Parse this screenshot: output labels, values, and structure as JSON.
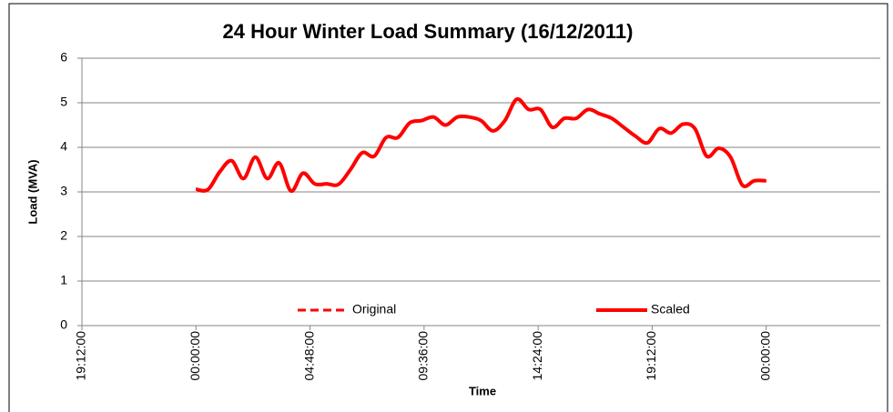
{
  "chart_data": {
    "type": "line",
    "title": "24 Hour Winter Load Summary (16/12/2011)",
    "x_label": "Time",
    "y_label": "Load (MVA)",
    "x": [
      0,
      0.5,
      1,
      1.5,
      2,
      2.5,
      3,
      3.5,
      4,
      4.5,
      5,
      5.5,
      6,
      6.5,
      7,
      7.5,
      8,
      8.5,
      9,
      9.5,
      10,
      10.5,
      11,
      11.5,
      12,
      12.5,
      13,
      13.5,
      14,
      14.5,
      15,
      15.5,
      16,
      16.5,
      17,
      17.5,
      18,
      18.5,
      19,
      19.5,
      20,
      20.5,
      21,
      21.5,
      22,
      22.5,
      23,
      23.5,
      24
    ],
    "series": [
      {
        "name": "Original",
        "color": "#ff0000",
        "dash": true,
        "values": [
          3.06,
          3.05,
          3.45,
          3.7,
          3.3,
          3.78,
          3.3,
          3.65,
          3.02,
          3.42,
          3.18,
          3.18,
          3.17,
          3.5,
          3.88,
          3.8,
          4.22,
          4.22,
          4.55,
          4.6,
          4.68,
          4.5,
          4.68,
          4.68,
          4.6,
          4.37,
          4.6,
          5.08,
          4.85,
          4.85,
          4.45,
          4.65,
          4.65,
          4.85,
          4.75,
          4.65,
          4.45,
          4.25,
          4.1,
          4.42,
          4.32,
          4.52,
          4.42,
          3.8,
          3.98,
          3.78,
          3.15,
          3.25,
          3.25
        ]
      },
      {
        "name": "Scaled",
        "color": "#ff0000",
        "dash": false,
        "values": [
          3.06,
          3.05,
          3.45,
          3.7,
          3.3,
          3.78,
          3.3,
          3.65,
          3.02,
          3.42,
          3.18,
          3.18,
          3.17,
          3.5,
          3.88,
          3.8,
          4.22,
          4.22,
          4.55,
          4.6,
          4.68,
          4.5,
          4.68,
          4.68,
          4.6,
          4.37,
          4.6,
          5.08,
          4.85,
          4.85,
          4.45,
          4.65,
          4.65,
          4.85,
          4.75,
          4.65,
          4.45,
          4.25,
          4.1,
          4.42,
          4.32,
          4.52,
          4.42,
          3.8,
          3.98,
          3.78,
          3.15,
          3.25,
          3.25
        ]
      }
    ],
    "xlim": [
      -4.8,
      28.8
    ],
    "xticks": [
      {
        "value": -4.8,
        "label": "19:12:00"
      },
      {
        "value": 0,
        "label": "00:00:00"
      },
      {
        "value": 4.8,
        "label": "04:48:00"
      },
      {
        "value": 9.6,
        "label": "09:36:00"
      },
      {
        "value": 14.4,
        "label": "14:24:00"
      },
      {
        "value": 19.2,
        "label": "19:12:00"
      },
      {
        "value": 24,
        "label": "00:00:00"
      }
    ],
    "ylim": [
      0,
      6
    ],
    "yticks": [
      0,
      1,
      2,
      3,
      4,
      5,
      6
    ],
    "grid": true
  }
}
